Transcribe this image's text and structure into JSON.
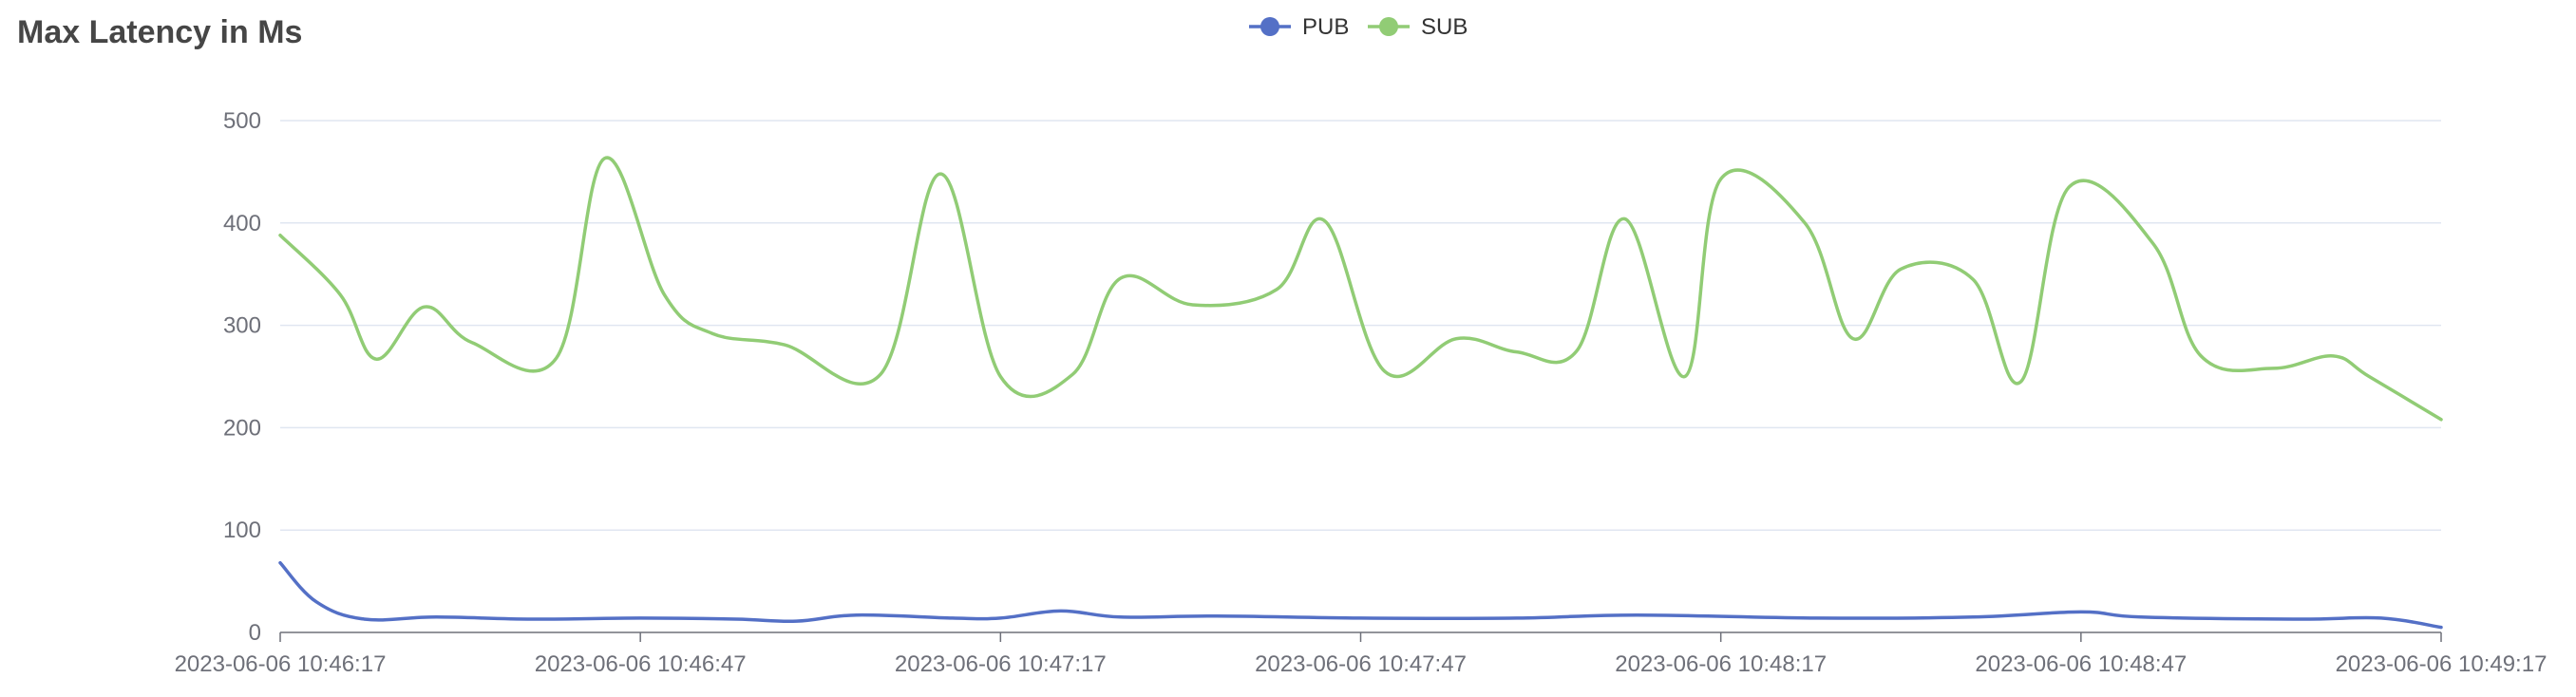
{
  "chart_data": {
    "type": "line",
    "title": "Max Latency in Ms",
    "xlabel": "",
    "ylabel": "",
    "x_ticks": [
      "2023-06-06 10:46:17",
      "2023-06-06 10:46:47",
      "2023-06-06 10:47:17",
      "2023-06-06 10:47:47",
      "2023-06-06 10:48:17",
      "2023-06-06 10:48:47",
      "2023-06-06 10:49:17"
    ],
    "y_ticks": [
      0,
      100,
      200,
      300,
      400,
      500
    ],
    "ylim": [
      0,
      500
    ],
    "xlim": [
      "2023-06-06 10:46:17",
      "2023-06-06 10:49:17"
    ],
    "legend_position": "top-center",
    "grid": true,
    "smooth": true,
    "series": [
      {
        "name": "PUB",
        "color": "#5470c6",
        "points": [
          [
            "2023-06-06 10:46:17",
            68
          ],
          [
            "2023-06-06 10:46:20",
            30
          ],
          [
            "2023-06-06 10:46:24",
            13
          ],
          [
            "2023-06-06 10:46:30",
            15
          ],
          [
            "2023-06-06 10:46:38",
            13
          ],
          [
            "2023-06-06 10:46:47",
            14
          ],
          [
            "2023-06-06 10:46:55",
            13
          ],
          [
            "2023-06-06 10:47:00",
            11
          ],
          [
            "2023-06-06 10:47:05",
            17
          ],
          [
            "2023-06-06 10:47:13",
            14
          ],
          [
            "2023-06-06 10:47:17",
            14
          ],
          [
            "2023-06-06 10:47:22",
            21
          ],
          [
            "2023-06-06 10:47:27",
            15
          ],
          [
            "2023-06-06 10:47:35",
            16
          ],
          [
            "2023-06-06 10:47:47",
            14
          ],
          [
            "2023-06-06 10:48:00",
            14
          ],
          [
            "2023-06-06 10:48:10",
            17
          ],
          [
            "2023-06-06 10:48:25",
            14
          ],
          [
            "2023-06-06 10:48:38",
            15
          ],
          [
            "2023-06-06 10:48:47",
            20
          ],
          [
            "2023-06-06 10:48:52",
            15
          ],
          [
            "2023-06-06 10:49:05",
            13
          ],
          [
            "2023-06-06 10:49:12",
            14
          ],
          [
            "2023-06-06 10:49:17",
            5
          ]
        ]
      },
      {
        "name": "SUB",
        "color": "#91cc75",
        "points": [
          [
            "2023-06-06 10:46:17",
            388
          ],
          [
            "2023-06-06 10:46:22",
            330
          ],
          [
            "2023-06-06 10:46:25",
            267
          ],
          [
            "2023-06-06 10:46:29",
            318
          ],
          [
            "2023-06-06 10:46:33",
            283
          ],
          [
            "2023-06-06 10:46:40",
            268
          ],
          [
            "2023-06-06 10:46:44",
            463
          ],
          [
            "2023-06-06 10:46:49",
            330
          ],
          [
            "2023-06-06 10:46:53",
            292
          ],
          [
            "2023-06-06 10:46:59",
            281
          ],
          [
            "2023-06-06 10:47:07",
            252
          ],
          [
            "2023-06-06 10:47:12",
            448
          ],
          [
            "2023-06-06 10:47:17",
            250
          ],
          [
            "2023-06-06 10:47:23",
            252
          ],
          [
            "2023-06-06 10:47:27",
            346
          ],
          [
            "2023-06-06 10:47:33",
            320
          ],
          [
            "2023-06-06 10:47:40",
            335
          ],
          [
            "2023-06-06 10:47:44",
            402
          ],
          [
            "2023-06-06 10:47:49",
            255
          ],
          [
            "2023-06-06 10:47:55",
            287
          ],
          [
            "2023-06-06 10:48:00",
            274
          ],
          [
            "2023-06-06 10:48:05",
            275
          ],
          [
            "2023-06-06 10:48:09",
            404
          ],
          [
            "2023-06-06 10:48:14",
            250
          ],
          [
            "2023-06-06 10:48:17",
            443
          ],
          [
            "2023-06-06 10:48:24",
            400
          ],
          [
            "2023-06-06 10:48:28",
            287
          ],
          [
            "2023-06-06 10:48:32",
            355
          ],
          [
            "2023-06-06 10:48:38",
            345
          ],
          [
            "2023-06-06 10:48:42",
            245
          ],
          [
            "2023-06-06 10:48:46",
            435
          ],
          [
            "2023-06-06 10:48:53",
            380
          ],
          [
            "2023-06-06 10:48:57",
            270
          ],
          [
            "2023-06-06 10:49:03",
            258
          ],
          [
            "2023-06-06 10:49:08",
            270
          ],
          [
            "2023-06-06 10:49:11",
            250
          ],
          [
            "2023-06-06 10:49:17",
            208
          ]
        ]
      }
    ]
  }
}
